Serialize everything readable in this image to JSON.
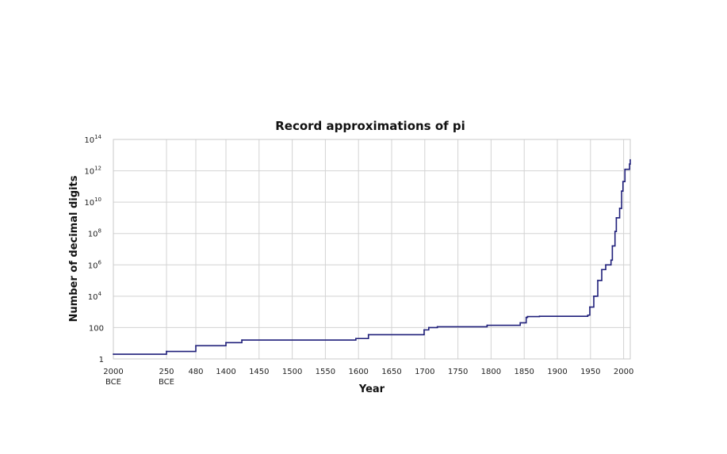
{
  "chart_data": {
    "type": "line",
    "title": "Record approximations of pi",
    "xlabel": "Year",
    "ylabel": "Number of decimal digits",
    "y_scale": "log",
    "grid": true,
    "line_color": "#1f1f7a",
    "x_ticks": [
      {
        "lines": [
          "2000",
          "BCE"
        ]
      },
      {
        "lines": [
          "250",
          "BCE"
        ]
      },
      {
        "lines": [
          "480"
        ]
      },
      {
        "lines": [
          "1400"
        ]
      },
      {
        "lines": [
          "1450"
        ]
      },
      {
        "lines": [
          "1500"
        ]
      },
      {
        "lines": [
          "1550"
        ]
      },
      {
        "lines": [
          "1600"
        ]
      },
      {
        "lines": [
          "1650"
        ]
      },
      {
        "lines": [
          "1700"
        ]
      },
      {
        "lines": [
          "1750"
        ]
      },
      {
        "lines": [
          "1800"
        ]
      },
      {
        "lines": [
          "1850"
        ]
      },
      {
        "lines": [
          "1900"
        ]
      },
      {
        "lines": [
          "1950"
        ]
      },
      {
        "lines": [
          "2000"
        ]
      }
    ],
    "y_ticks": [
      {
        "base": "1",
        "exp": ""
      },
      {
        "base": "100",
        "exp": ""
      },
      {
        "base": "10",
        "exp": "4"
      },
      {
        "base": "10",
        "exp": "6"
      },
      {
        "base": "10",
        "exp": "8"
      },
      {
        "base": "10",
        "exp": "10"
      },
      {
        "base": "10",
        "exp": "12"
      },
      {
        "base": "10",
        "exp": "14"
      }
    ],
    "series": [
      {
        "points": [
          [
            "2000 BCE",
            2
          ],
          [
            "250 BCE",
            3
          ],
          [
            "480",
            7
          ],
          [
            "1400",
            11
          ],
          [
            "1424",
            16
          ],
          [
            "1596",
            20
          ],
          [
            "1615",
            35
          ],
          [
            "1699",
            71
          ],
          [
            "1706",
            100
          ],
          [
            "1719",
            112
          ],
          [
            "1794",
            140
          ],
          [
            "1844",
            200
          ],
          [
            "1853",
            440
          ],
          [
            "1855",
            500
          ],
          [
            "1873",
            527
          ],
          [
            "1946",
            620
          ],
          [
            "1949",
            2037
          ],
          [
            "1955",
            10000
          ],
          [
            "1958",
            10000
          ],
          [
            "1961",
            100000
          ],
          [
            "1967",
            500000
          ],
          [
            "1973",
            1000000
          ],
          [
            "1981",
            2000000
          ],
          [
            "1983",
            16000000
          ],
          [
            "1987",
            134000000
          ],
          [
            "1989",
            1000000000
          ],
          [
            "1994",
            4000000000
          ],
          [
            "1997",
            51000000000
          ],
          [
            "1999",
            206000000000
          ],
          [
            "2002",
            1240000000000
          ],
          [
            "2009",
            2700000000000
          ],
          [
            "2010",
            5000000000000
          ]
        ]
      }
    ]
  }
}
